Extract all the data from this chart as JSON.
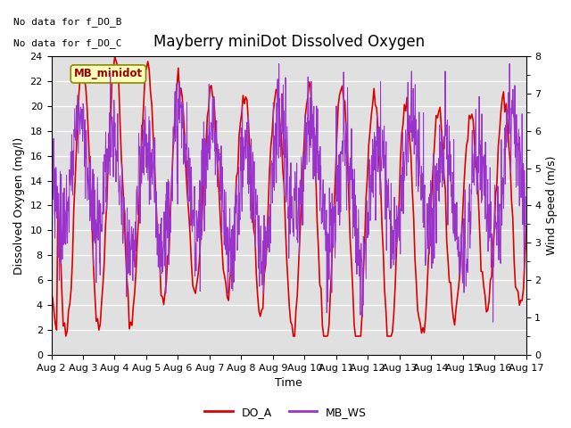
{
  "title": "Mayberry miniDot Dissolved Oxygen",
  "xlabel": "Time",
  "ylabel_left": "Dissolved Oxygen (mg/l)",
  "ylabel_right": "Wind Speed (m/s)",
  "no_data_text_1": "No data for f_DO_B",
  "no_data_text_2": "No data for f_DO_C",
  "legend_box_text": "MB_minidot",
  "ylim_left": [
    0,
    24
  ],
  "ylim_right": [
    0.0,
    8.0
  ],
  "yticks_left": [
    0,
    2,
    4,
    6,
    8,
    10,
    12,
    14,
    16,
    18,
    20,
    22,
    24
  ],
  "yticks_right": [
    0.0,
    1.0,
    2.0,
    3.0,
    4.0,
    5.0,
    6.0,
    7.0,
    8.0
  ],
  "xtick_labels": [
    "Aug 2",
    "Aug 3",
    "Aug 4",
    "Aug 5",
    "Aug 6",
    "Aug 7",
    "Aug 8",
    "Aug 9",
    "Aug 10",
    "Aug 11",
    "Aug 12",
    "Aug 13",
    "Aug 14",
    "Aug 15",
    "Aug 16",
    "Aug 17"
  ],
  "color_DO_A": "#dd0000",
  "color_MB_WS": "#9933cc",
  "bg_color": "#e0e0e0",
  "legend_DO_A": "DO_A",
  "legend_MB_WS": "MB_WS",
  "title_fontsize": 12,
  "axis_fontsize": 9,
  "tick_fontsize": 8,
  "n_days": 15,
  "figsize": [
    6.4,
    4.8
  ],
  "dpi": 100
}
